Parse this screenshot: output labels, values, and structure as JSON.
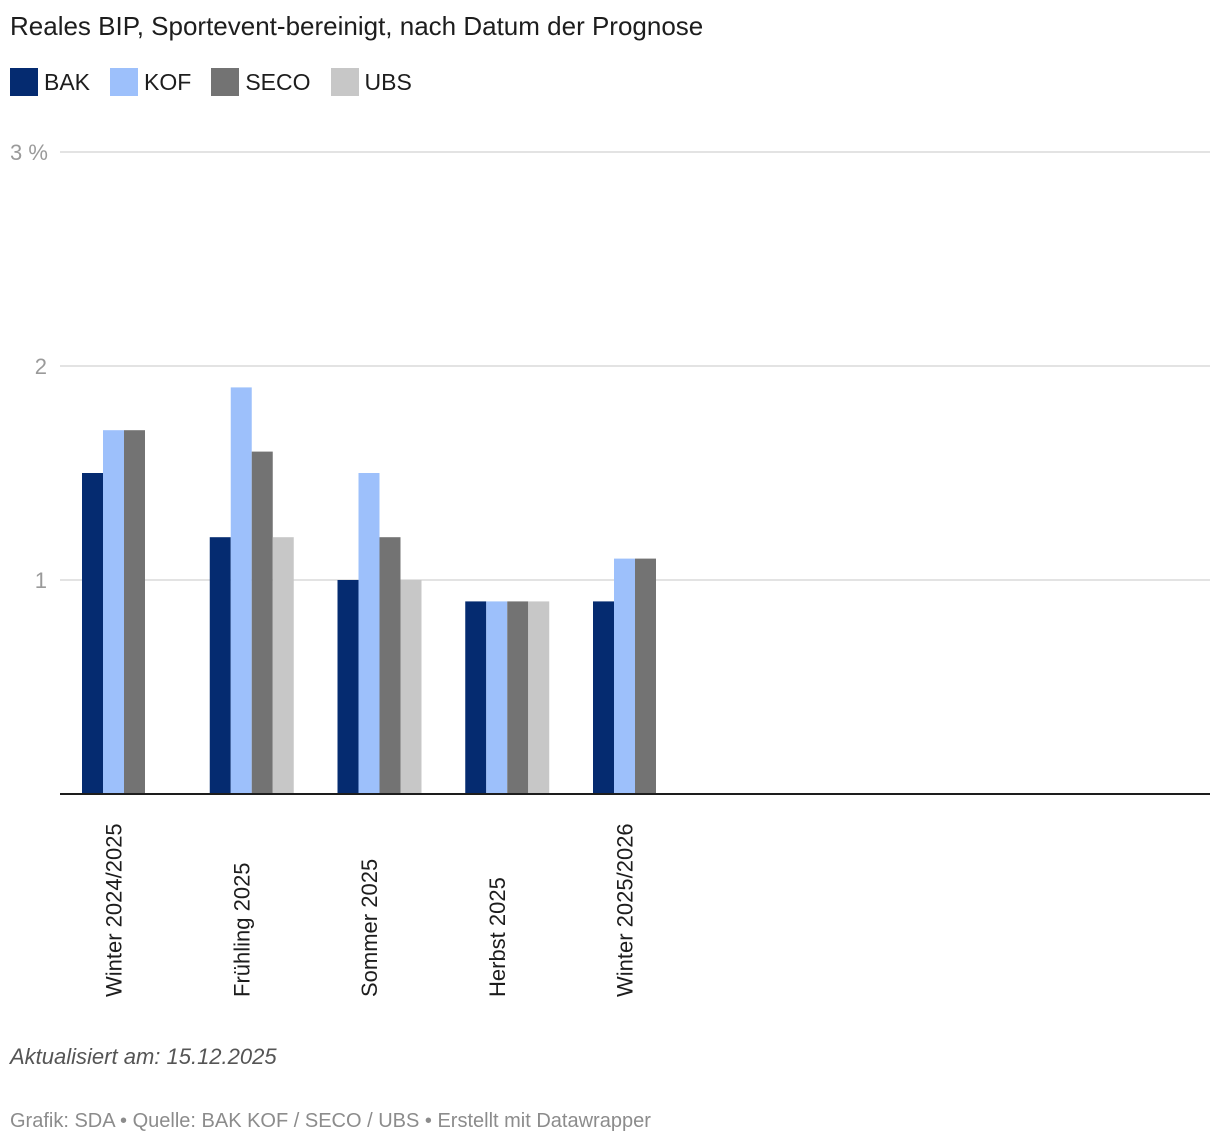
{
  "chart_data": {
    "type": "bar",
    "title": "Reales BIP, Sportevent-bereinigt, nach Datum der Prognose",
    "categories": [
      "Winter 2024/2025",
      "Frühling 2025",
      "Sommer 2025",
      "Herbst 2025",
      "Winter 2025/2026"
    ],
    "series": [
      {
        "name": "BAK",
        "color": "#052b70",
        "values": [
          1.5,
          1.2,
          1.0,
          0.9,
          0.9
        ]
      },
      {
        "name": "KOF",
        "color": "#9dc0fb",
        "values": [
          1.7,
          1.9,
          1.5,
          0.9,
          1.1
        ]
      },
      {
        "name": "SECO",
        "color": "#737373",
        "values": [
          1.7,
          1.6,
          1.2,
          0.9,
          1.1
        ]
      },
      {
        "name": "UBS",
        "color": "#c7c7c7",
        "values": [
          null,
          1.2,
          1.0,
          0.9,
          null
        ]
      }
    ],
    "ylim": [
      0,
      3
    ],
    "yticks": [
      {
        "value": 1,
        "label": "1"
      },
      {
        "value": 2,
        "label": "2"
      },
      {
        "value": 3,
        "label": "3 %"
      }
    ],
    "xlabel": "",
    "ylabel": "",
    "grid": true,
    "legend": "top-left",
    "grid_color": "#e3e3e3",
    "axis_color": "#1d1d1d"
  },
  "notes": {
    "updated": "Aktualisiert am: 15.12.2025",
    "source": "Grafik: SDA • Quelle: BAK KOF / SECO / UBS • Erstellt mit Datawrapper"
  }
}
